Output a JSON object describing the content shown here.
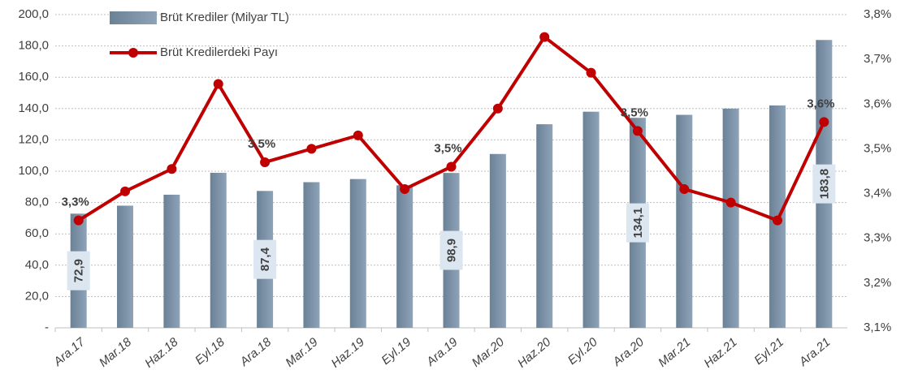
{
  "chart_data": {
    "type": "bar_line",
    "categories": [
      "Ara.17",
      "Mar.18",
      "Haz.18",
      "Eyl.18",
      "Ara.18",
      "Mar.19",
      "Haz.19",
      "Eyl.19",
      "Ara.19",
      "Mar.20",
      "Haz.20",
      "Eyl.20",
      "Ara.20",
      "Mar.21",
      "Haz.21",
      "Eyl.21",
      "Ara.21"
    ],
    "series": [
      {
        "name": "Brüt Krediler (Milyar TL)",
        "type": "bar",
        "color": "#8ea3b8",
        "values": [
          72.9,
          78,
          85,
          99,
          87.4,
          93,
          95,
          91,
          98.9,
          111,
          130,
          138,
          134.1,
          136,
          140,
          142,
          183.8
        ],
        "value_labels": [
          "72,9",
          null,
          null,
          null,
          "87,4",
          null,
          null,
          null,
          "98,9",
          null,
          null,
          null,
          "134,1",
          null,
          null,
          null,
          "183,8"
        ]
      },
      {
        "name": "Brüt Kredilerdeki Payı",
        "type": "line",
        "axis": "y2",
        "color": "#c00000",
        "values": [
          3.34,
          3.405,
          3.455,
          3.645,
          3.47,
          3.5,
          3.53,
          3.41,
          3.46,
          3.59,
          3.75,
          3.67,
          3.54,
          3.41,
          3.38,
          3.34,
          3.56
        ],
        "value_labels": [
          "3,3%",
          null,
          null,
          null,
          "3,5%",
          null,
          null,
          null,
          "3,5%",
          null,
          null,
          null,
          "3,5%",
          null,
          null,
          null,
          "3,6%"
        ]
      }
    ],
    "ylim": [
      0,
      200
    ],
    "yticks": [
      {
        "value": 0,
        "label": "-"
      },
      {
        "value": 20,
        "label": "20,0"
      },
      {
        "value": 40,
        "label": "40,0"
      },
      {
        "value": 60,
        "label": "60,0"
      },
      {
        "value": 80,
        "label": "80,0"
      },
      {
        "value": 100,
        "label": "100,0"
      },
      {
        "value": 120,
        "label": "120,0"
      },
      {
        "value": 140,
        "label": "140,0"
      },
      {
        "value": 160,
        "label": "160,0"
      },
      {
        "value": 180,
        "label": "180,0"
      },
      {
        "value": 200,
        "label": "200,0"
      }
    ],
    "y2lim": [
      3.1,
      3.8
    ],
    "y2ticks": [
      {
        "value": 3.1,
        "label": "3,1%"
      },
      {
        "value": 3.2,
        "label": "3,2%"
      },
      {
        "value": 3.3,
        "label": "3,3%"
      },
      {
        "value": 3.4,
        "label": "3,4%"
      },
      {
        "value": 3.5,
        "label": "3,5%"
      },
      {
        "value": 3.6,
        "label": "3,6%"
      },
      {
        "value": 3.7,
        "label": "3,7%"
      },
      {
        "value": 3.8,
        "label": "3,8%"
      }
    ],
    "grid": true
  }
}
